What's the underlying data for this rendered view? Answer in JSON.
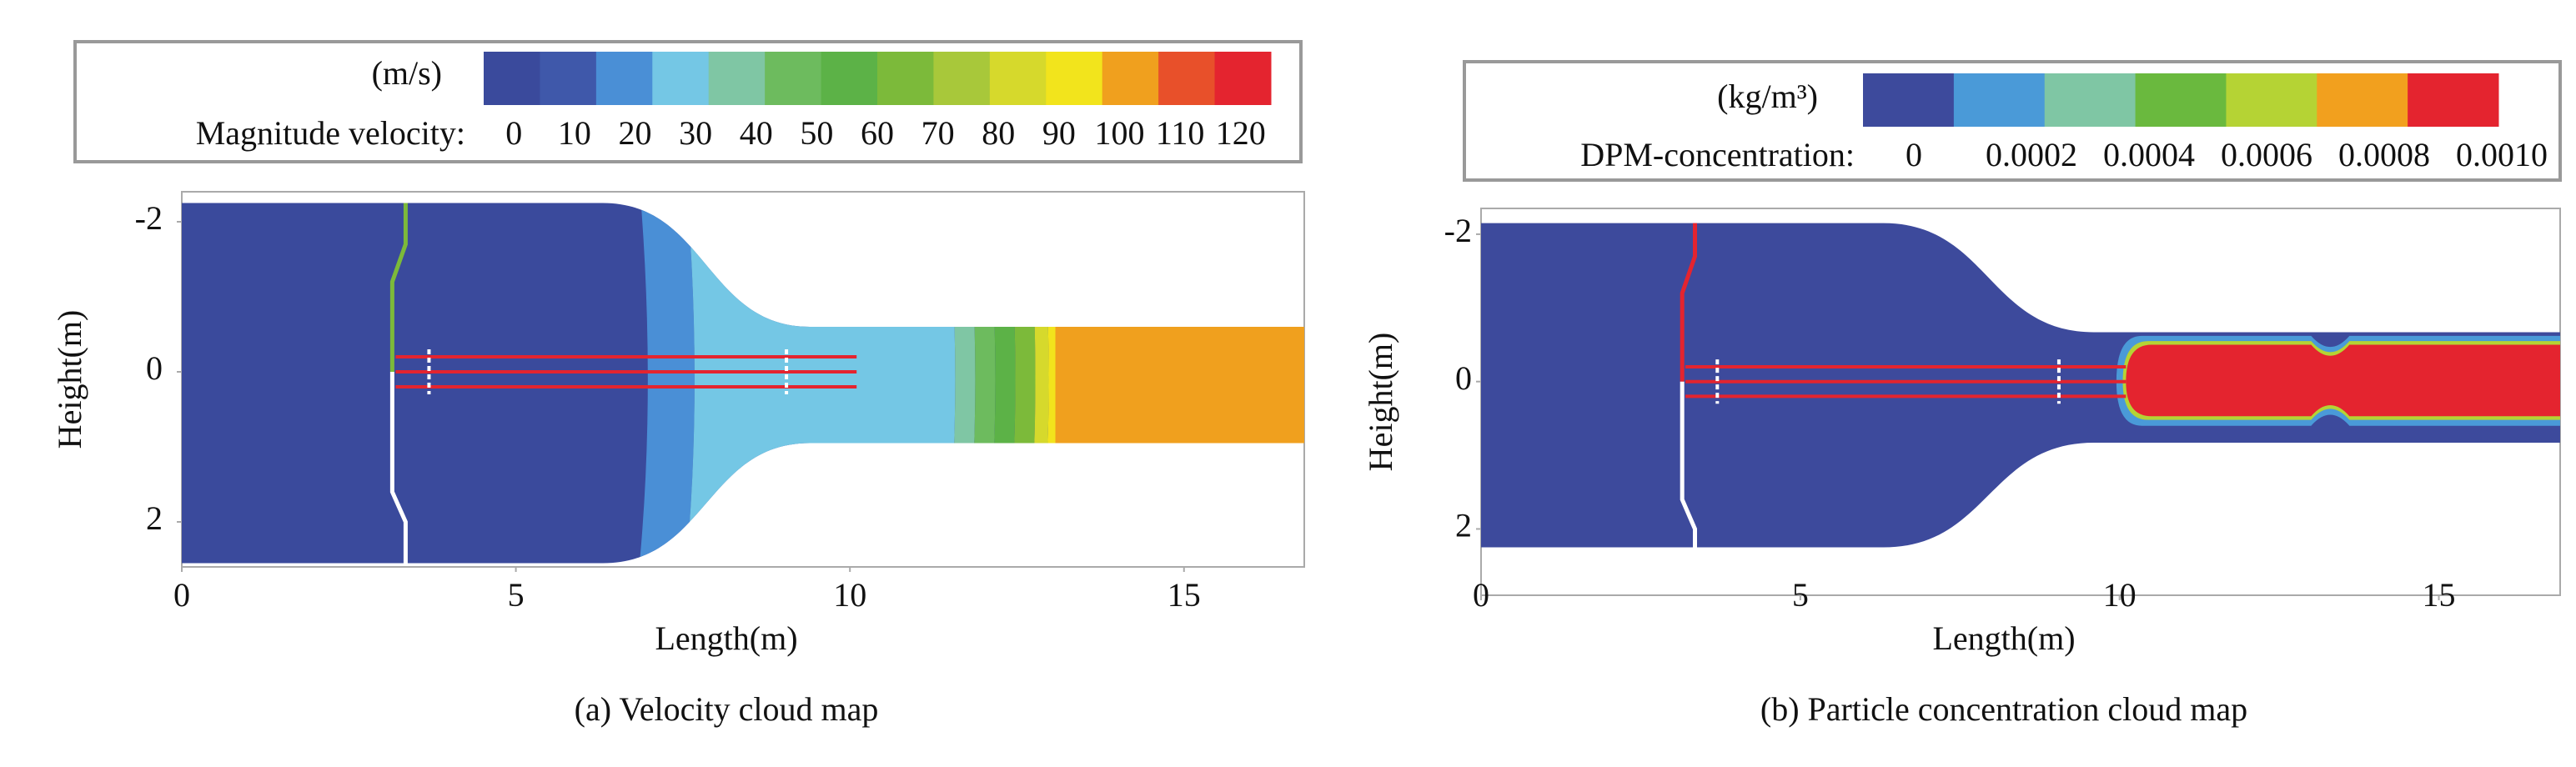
{
  "chart_data": [
    {
      "type": "contour",
      "caption": "(a) Velocity cloud map",
      "xlabel": "Length(m)",
      "ylabel": "Height(m)",
      "xlim": [
        0,
        16.8
      ],
      "xticks": [
        0,
        5,
        10,
        15
      ],
      "ylim": [
        -2.4,
        2.6
      ],
      "yticks": [
        -2,
        0,
        2
      ],
      "y_inverted": true,
      "colorbar": {
        "unit": "(m/s)",
        "label": "Magnitude velocity:",
        "colors": [
          "#3a4a9c",
          "#3f58aa",
          "#4a8fd6",
          "#74c7e5",
          "#7fc6a4",
          "#6dbb5e",
          "#5cb247",
          "#7cba3a",
          "#a8c83a",
          "#d6d92c",
          "#f2e41c",
          "#f0a01e",
          "#e8502a",
          "#e4242f"
        ],
        "ticks": [
          0,
          10,
          20,
          30,
          40,
          50,
          60,
          70,
          80,
          90,
          100,
          110,
          120
        ]
      }
    },
    {
      "type": "contour",
      "caption": "(b) Particle concentration cloud map",
      "xlabel": "Length(m)",
      "ylabel": "Height(m)",
      "xlim": [
        0,
        16.9
      ],
      "xticks": [
        0,
        5,
        10,
        15
      ],
      "ylim": [
        -2.35,
        2.9
      ],
      "yticks": [
        -2,
        0,
        2
      ],
      "y_inverted": true,
      "colorbar": {
        "unit": "(kg/m³)",
        "label": "DPM-concentration:",
        "colors": [
          "#3d4a9c",
          "#4a9ad8",
          "#7fc6a4",
          "#6ab93e",
          "#b5d334",
          "#f2a01e",
          "#e4242f"
        ],
        "ticks": [
          0,
          0.0002,
          0.0004,
          0.0006,
          0.0008,
          {
            "value": 0.001,
            "label": "0.0010"
          }
        ]
      }
    }
  ]
}
